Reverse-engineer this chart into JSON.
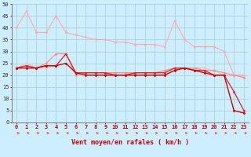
{
  "x": [
    0,
    1,
    2,
    3,
    4,
    5,
    6,
    7,
    8,
    9,
    10,
    11,
    12,
    13,
    14,
    15,
    16,
    17,
    18,
    19,
    20,
    21,
    22,
    23
  ],
  "series": [
    {
      "y": [
        40,
        47,
        38,
        38,
        45,
        38,
        37,
        36,
        35,
        35,
        34,
        34,
        33,
        33,
        33,
        32,
        43,
        35,
        32,
        32,
        32,
        30,
        20,
        20
      ],
      "color": "#ffaaaa",
      "marker": "D",
      "markersize": 1.5,
      "linewidth": 0.8
    },
    {
      "y": [
        23,
        25,
        23,
        23,
        24,
        29,
        21,
        21,
        21,
        21,
        21,
        21,
        21,
        21,
        21,
        21,
        23,
        23,
        23,
        23,
        22,
        20,
        20,
        19
      ],
      "color": "#ffbbbb",
      "marker": "D",
      "markersize": 1.5,
      "linewidth": 0.8
    },
    {
      "y": [
        23,
        24,
        23,
        25,
        29,
        29,
        20,
        21,
        21,
        21,
        21,
        21,
        21,
        21,
        21,
        22,
        23,
        23,
        23,
        22,
        22,
        21,
        20,
        19
      ],
      "color": "#ff8888",
      "marker": "D",
      "markersize": 1.5,
      "linewidth": 0.8
    },
    {
      "y": [
        23,
        24,
        23,
        24,
        24,
        29,
        21,
        21,
        21,
        21,
        20,
        20,
        21,
        21,
        21,
        21,
        23,
        23,
        22,
        22,
        20,
        20,
        13,
        5
      ],
      "color": "#dd2222",
      "marker": "D",
      "markersize": 1.5,
      "linewidth": 0.9
    },
    {
      "y": [
        23,
        23,
        23,
        24,
        24,
        25,
        21,
        20,
        20,
        20,
        20,
        20,
        20,
        20,
        20,
        20,
        22,
        23,
        22,
        21,
        20,
        20,
        5,
        4
      ],
      "color": "#cc0000",
      "marker": "D",
      "markersize": 1.5,
      "linewidth": 1.0
    }
  ],
  "xlim": [
    -0.5,
    23.5
  ],
  "ylim": [
    0,
    50
  ],
  "yticks": [
    0,
    5,
    10,
    15,
    20,
    25,
    30,
    35,
    40,
    45,
    50
  ],
  "xlabel": "Vent moyen/en rafales ( km/h )",
  "xlabel_color": "#cc0000",
  "xlabel_fontsize": 6,
  "bg_color": "#cceeff",
  "grid_color": "#aacccc",
  "tick_color": "#cc0000",
  "tick_fontsize": 5,
  "arrow_color": "#ff4444"
}
